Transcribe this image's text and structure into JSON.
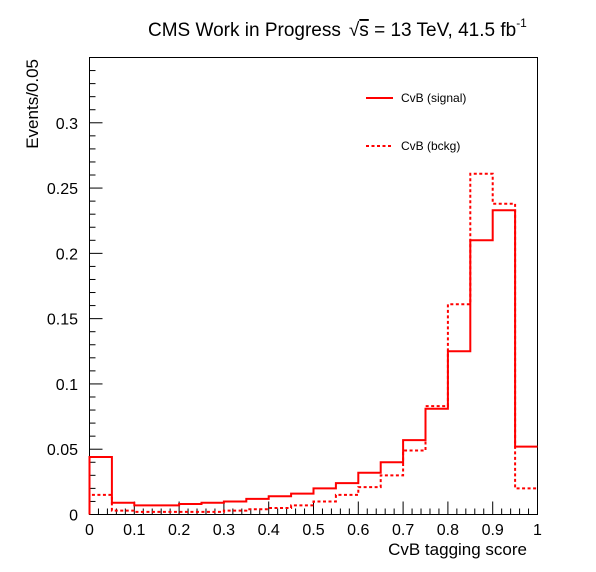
{
  "title": {
    "prefix": "CMS Work in Progress",
    "sqrt_symbol": "√",
    "energy_var": "s",
    "energy_text": " = 13 TeV, 41.5 fb",
    "exponent": "-1"
  },
  "chart_data": {
    "type": "histogram",
    "xlabel": "CvB tagging score",
    "ylabel": "Events/0.05",
    "xlim": [
      0,
      1
    ],
    "ylim": [
      0,
      0.35
    ],
    "x_ticks": [
      "0",
      "0.1",
      "0.2",
      "0.3",
      "0.4",
      "0.5",
      "0.6",
      "0.7",
      "0.8",
      "0.9",
      "1"
    ],
    "y_ticks": [
      "0",
      "0.05",
      "0.1",
      "0.15",
      "0.2",
      "0.25",
      "0.3"
    ],
    "legend_position": "top-right",
    "bin_edges": [
      0,
      0.05,
      0.1,
      0.15,
      0.2,
      0.25,
      0.3,
      0.35,
      0.4,
      0.45,
      0.5,
      0.55,
      0.6,
      0.65,
      0.7,
      0.75,
      0.8,
      0.85,
      0.9,
      0.95,
      1.0
    ],
    "series": [
      {
        "name": "CvB (signal)",
        "style": "solid",
        "color": "#ff0000",
        "values": [
          0.044,
          0.009,
          0.007,
          0.007,
          0.008,
          0.009,
          0.01,
          0.012,
          0.014,
          0.016,
          0.02,
          0.024,
          0.032,
          0.04,
          0.057,
          0.081,
          0.125,
          0.21,
          0.233,
          0.052
        ]
      },
      {
        "name": "CvB (bckg)",
        "style": "dashed",
        "color": "#ff0000",
        "values": [
          0.015,
          0.003,
          0.002,
          0.002,
          0.002,
          0.002,
          0.003,
          0.004,
          0.005,
          0.007,
          0.01,
          0.015,
          0.021,
          0.03,
          0.049,
          0.083,
          0.161,
          0.261,
          0.238,
          0.02
        ]
      }
    ]
  }
}
